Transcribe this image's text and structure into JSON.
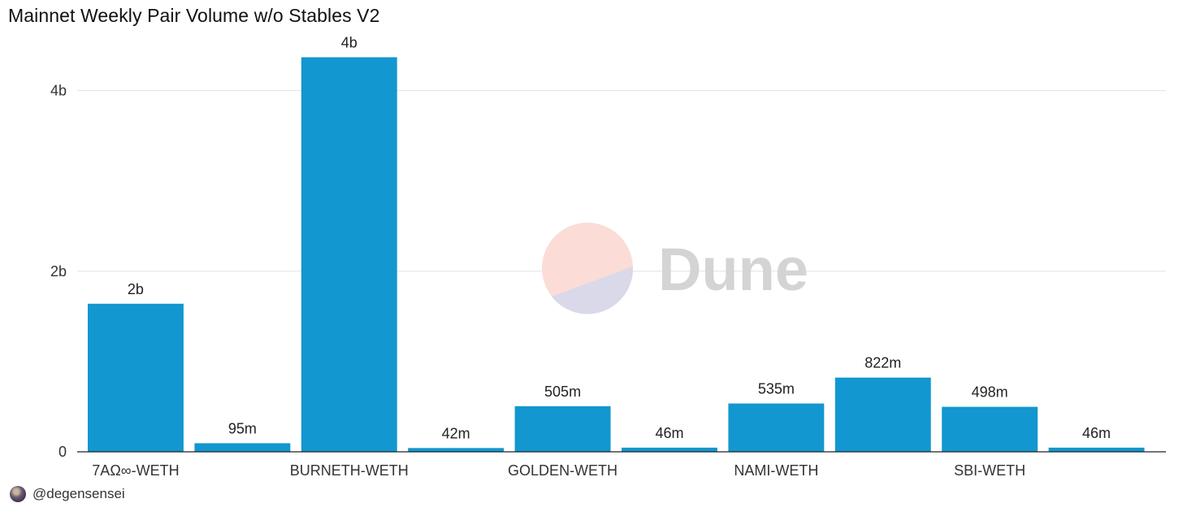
{
  "title": "Mainnet Weekly Pair Volume w/o Stables V2",
  "author": "@degensensei",
  "watermark": "Dune",
  "chart_data": {
    "type": "bar",
    "categories": [
      "7AΩ∞-WETH",
      "",
      "BURNETH-WETH",
      "",
      "GOLDEN-WETH",
      "",
      "NAMI-WETH",
      "",
      "SBI-WETH",
      ""
    ],
    "values": [
      1640000000,
      95000000,
      4370000000,
      42000000,
      505000000,
      46000000,
      535000000,
      822000000,
      498000000,
      46000000
    ],
    "data_labels": [
      "2b",
      "95m",
      "4b",
      "42m",
      "505m",
      "46m",
      "535m",
      "822m",
      "498m",
      "46m"
    ],
    "ylim": [
      0,
      4500000000
    ],
    "yticks": [
      0,
      2000000000,
      4000000000
    ],
    "ytick_labels": [
      "0",
      "2b",
      "4b"
    ],
    "bar_color": "#1297d0",
    "grid": true,
    "xlabel": "",
    "ylabel": ""
  }
}
